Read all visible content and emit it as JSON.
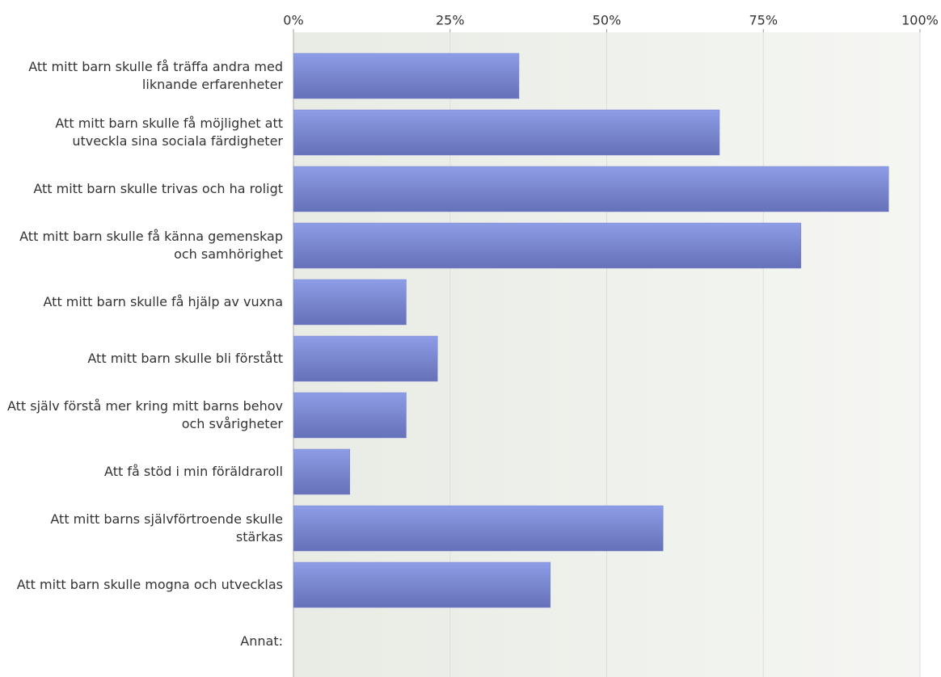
{
  "chart_data": {
    "type": "barh",
    "categories": [
      "Att mitt barn skulle få träffa andra med liknande erfarenheter",
      "Att mitt barn skulle få möjlighet att utveckla sina sociala färdigheter",
      "Att mitt barn skulle trivas och ha roligt",
      "Att mitt barn skulle få känna gemenskap och samhörighet",
      "Att mitt barn skulle få hjälp av vuxna",
      "Att mitt barn skulle bli förstått",
      "Att själv förstå mer kring mitt barns behov och svårigheter",
      "Att få stöd i min föräldraroll",
      "Att mitt barns självförtroende skulle stärkas",
      "Att mitt barn skulle mogna och utvecklas",
      "Annat:"
    ],
    "values": [
      36,
      68,
      95,
      81,
      18,
      23,
      18,
      9,
      59,
      41,
      0
    ],
    "color": "#7986d0",
    "xlim": [
      0,
      100
    ],
    "xticks": [
      {
        "value": 0,
        "label": "0%"
      },
      {
        "value": 25,
        "label": "25%"
      },
      {
        "value": 50,
        "label": "50%"
      },
      {
        "value": 75,
        "label": "75%"
      },
      {
        "value": 100,
        "label": "100%"
      }
    ],
    "grid": true
  }
}
